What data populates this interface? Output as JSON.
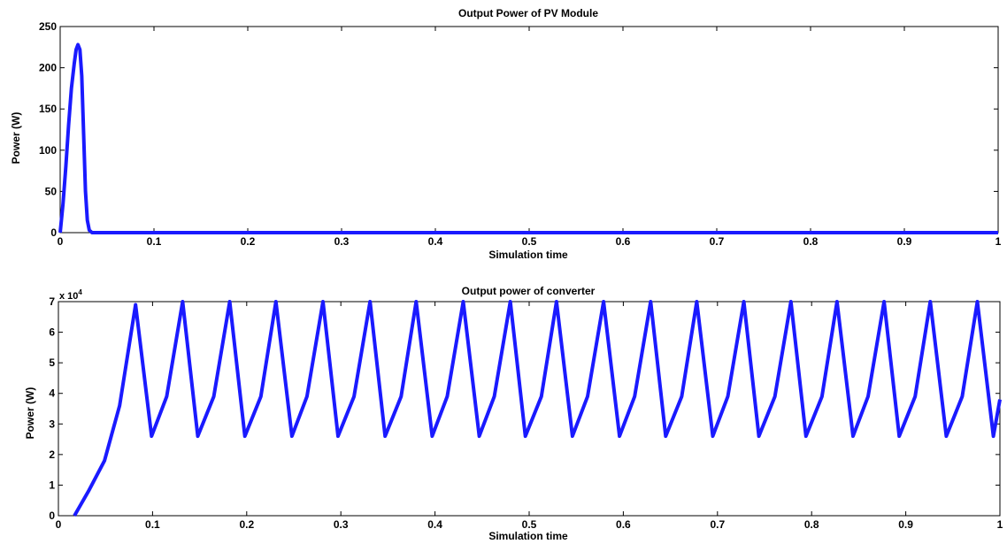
{
  "chart_data": [
    {
      "type": "line",
      "title": "Output Power of PV Module",
      "xlabel": "Simulation time",
      "ylabel": "Power (W)",
      "xlim": [
        0,
        1
      ],
      "ylim": [
        0,
        250
      ],
      "xticks": [
        "0",
        "0.1",
        "0.2",
        "0.3",
        "0.4",
        "0.5",
        "0.6",
        "0.7",
        "0.8",
        "0.9",
        "1"
      ],
      "yticks": [
        "0",
        "50",
        "100",
        "150",
        "200",
        "250"
      ],
      "grid": false,
      "line_color": "#1a1aff",
      "series": [
        {
          "x": [
            0,
            0.003,
            0.006,
            0.009,
            0.012,
            0.015,
            0.017,
            0.019,
            0.021,
            0.023,
            0.025,
            0.027,
            0.029,
            0.031,
            0.034,
            1
          ],
          "y": [
            0,
            35,
            80,
            130,
            175,
            205,
            222,
            228,
            222,
            190,
            120,
            50,
            15,
            3,
            0,
            0
          ]
        }
      ]
    },
    {
      "type": "line",
      "title": "Output power of converter",
      "xlabel": "Simulation time",
      "ylabel": "Power (W)",
      "exponent_label": "x 10",
      "exponent_power": "4",
      "xlim": [
        0,
        1
      ],
      "ylim": [
        0,
        7
      ],
      "xticks": [
        "0",
        "0.1",
        "0.2",
        "0.3",
        "0.4",
        "0.5",
        "0.6",
        "0.7",
        "0.8",
        "0.9",
        "1"
      ],
      "yticks": [
        "0",
        "1",
        "2",
        "3",
        "4",
        "5",
        "6",
        "7"
      ],
      "grid": false,
      "line_color": "#1a1aff",
      "series": [
        {
          "x": [
            0.017,
            0.032,
            0.049,
            0.065,
            0.082,
            0.099,
            0.115,
            0.132,
            0.148,
            0.165,
            0.182,
            0.198,
            0.215,
            0.231,
            0.248,
            0.264,
            0.281,
            0.297,
            0.314,
            0.331,
            0.347,
            0.364,
            0.38,
            0.397,
            0.413,
            0.43,
            0.447,
            0.463,
            0.48,
            0.496,
            0.513,
            0.529,
            0.546,
            0.562,
            0.579,
            0.596,
            0.612,
            0.629,
            0.645,
            0.662,
            0.678,
            0.695,
            0.711,
            0.728,
            0.744,
            0.761,
            0.778,
            0.794,
            0.811,
            0.827,
            0.844,
            0.86,
            0.877,
            0.893,
            0.91,
            0.926,
            0.943,
            0.96,
            0.976,
            0.993,
            1.0
          ],
          "y": [
            0,
            0.8,
            1.8,
            3.6,
            6.9,
            2.6,
            3.9,
            7.0,
            2.6,
            3.9,
            7.0,
            2.6,
            3.9,
            7.0,
            2.6,
            3.9,
            7.0,
            2.6,
            3.9,
            7.0,
            2.6,
            3.9,
            7.0,
            2.6,
            3.9,
            7.0,
            2.6,
            3.9,
            7.0,
            2.6,
            3.9,
            7.0,
            2.6,
            3.9,
            7.0,
            2.6,
            3.9,
            7.0,
            2.6,
            3.9,
            7.0,
            2.6,
            3.9,
            7.0,
            2.6,
            3.9,
            7.0,
            2.6,
            3.9,
            7.0,
            2.6,
            3.9,
            7.0,
            2.6,
            3.9,
            7.0,
            2.6,
            3.9,
            7.0,
            2.6,
            3.8
          ]
        }
      ]
    }
  ]
}
